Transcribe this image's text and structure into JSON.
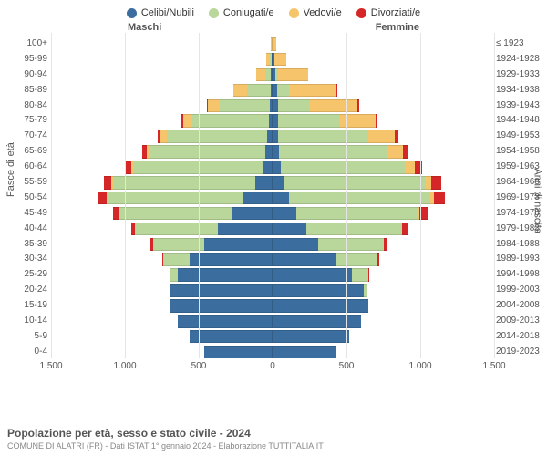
{
  "legend": {
    "items": [
      {
        "label": "Celibi/Nubili",
        "color": "#3b6e9e"
      },
      {
        "label": "Coniugati/e",
        "color": "#b9d79a"
      },
      {
        "label": "Vedovi/e",
        "color": "#f6c46b"
      },
      {
        "label": "Divorziati/e",
        "color": "#d62728"
      }
    ]
  },
  "gender": {
    "male": "Maschi",
    "female": "Femmine"
  },
  "y_title_left": "Fasce di età",
  "y_title_right": "Anni di nascita",
  "axis": {
    "max": 1500,
    "ticks": [
      {
        "v": -1500,
        "label": "1.500"
      },
      {
        "v": -1000,
        "label": "1.000"
      },
      {
        "v": -500,
        "label": "500"
      },
      {
        "v": 0,
        "label": "0"
      },
      {
        "v": 500,
        "label": "500"
      },
      {
        "v": 1000,
        "label": "1.000"
      },
      {
        "v": 1500,
        "label": "1.500"
      }
    ]
  },
  "colors": {
    "celibi": "#3b6e9e",
    "coniugati": "#b9d79a",
    "vedovi": "#f6c46b",
    "divorziati": "#d62728",
    "grid": "#e5e5e5",
    "center": "#bbbbbb",
    "bg": "#ffffff"
  },
  "rows": [
    {
      "age": "100+",
      "birth": "≤ 1923",
      "m": {
        "c": 0,
        "g": 0,
        "v": 10,
        "d": 0
      },
      "f": {
        "c": 0,
        "g": 0,
        "v": 25,
        "d": 0
      }
    },
    {
      "age": "95-99",
      "birth": "1924-1928",
      "m": {
        "c": 5,
        "g": 10,
        "v": 30,
        "d": 0
      },
      "f": {
        "c": 10,
        "g": 5,
        "v": 80,
        "d": 0
      }
    },
    {
      "age": "90-94",
      "birth": "1929-1933",
      "m": {
        "c": 10,
        "g": 40,
        "v": 60,
        "d": 0
      },
      "f": {
        "c": 20,
        "g": 20,
        "v": 200,
        "d": 0
      }
    },
    {
      "age": "85-89",
      "birth": "1934-1938",
      "m": {
        "c": 15,
        "g": 160,
        "v": 90,
        "d": 0
      },
      "f": {
        "c": 30,
        "g": 80,
        "v": 320,
        "d": 5
      }
    },
    {
      "age": "80-84",
      "birth": "1939-1943",
      "m": {
        "c": 20,
        "g": 340,
        "v": 80,
        "d": 5
      },
      "f": {
        "c": 35,
        "g": 220,
        "v": 320,
        "d": 10
      }
    },
    {
      "age": "75-79",
      "birth": "1944-1948",
      "m": {
        "c": 25,
        "g": 520,
        "v": 60,
        "d": 10
      },
      "f": {
        "c": 35,
        "g": 420,
        "v": 240,
        "d": 15
      }
    },
    {
      "age": "70-74",
      "birth": "1949-1953",
      "m": {
        "c": 35,
        "g": 680,
        "v": 45,
        "d": 20
      },
      "f": {
        "c": 40,
        "g": 610,
        "v": 180,
        "d": 25
      }
    },
    {
      "age": "65-69",
      "birth": "1954-1958",
      "m": {
        "c": 50,
        "g": 780,
        "v": 25,
        "d": 30
      },
      "f": {
        "c": 45,
        "g": 730,
        "v": 110,
        "d": 35
      }
    },
    {
      "age": "60-64",
      "birth": "1959-1963",
      "m": {
        "c": 70,
        "g": 870,
        "v": 15,
        "d": 40
      },
      "f": {
        "c": 55,
        "g": 840,
        "v": 70,
        "d": 45
      }
    },
    {
      "age": "55-59",
      "birth": "1964-1968",
      "m": {
        "c": 120,
        "g": 960,
        "v": 10,
        "d": 55
      },
      "f": {
        "c": 80,
        "g": 950,
        "v": 45,
        "d": 65
      }
    },
    {
      "age": "50-54",
      "birth": "1969-1973",
      "m": {
        "c": 200,
        "g": 920,
        "v": 5,
        "d": 55
      },
      "f": {
        "c": 110,
        "g": 960,
        "v": 25,
        "d": 70
      }
    },
    {
      "age": "45-49",
      "birth": "1974-1978",
      "m": {
        "c": 280,
        "g": 760,
        "v": 3,
        "d": 40
      },
      "f": {
        "c": 160,
        "g": 820,
        "v": 15,
        "d": 55
      }
    },
    {
      "age": "40-44",
      "birth": "1979-1983",
      "m": {
        "c": 370,
        "g": 560,
        "v": 2,
        "d": 25
      },
      "f": {
        "c": 230,
        "g": 640,
        "v": 8,
        "d": 40
      }
    },
    {
      "age": "35-39",
      "birth": "1984-1988",
      "m": {
        "c": 460,
        "g": 350,
        "v": 0,
        "d": 15
      },
      "f": {
        "c": 310,
        "g": 440,
        "v": 3,
        "d": 25
      }
    },
    {
      "age": "30-34",
      "birth": "1989-1993",
      "m": {
        "c": 560,
        "g": 180,
        "v": 0,
        "d": 8
      },
      "f": {
        "c": 430,
        "g": 280,
        "v": 0,
        "d": 15
      }
    },
    {
      "age": "25-29",
      "birth": "1994-1998",
      "m": {
        "c": 640,
        "g": 55,
        "v": 0,
        "d": 3
      },
      "f": {
        "c": 540,
        "g": 110,
        "v": 0,
        "d": 5
      }
    },
    {
      "age": "20-24",
      "birth": "1999-2003",
      "m": {
        "c": 690,
        "g": 10,
        "v": 0,
        "d": 0
      },
      "f": {
        "c": 620,
        "g": 25,
        "v": 0,
        "d": 0
      }
    },
    {
      "age": "15-19",
      "birth": "2004-2008",
      "m": {
        "c": 700,
        "g": 0,
        "v": 0,
        "d": 0
      },
      "f": {
        "c": 650,
        "g": 0,
        "v": 0,
        "d": 0
      }
    },
    {
      "age": "10-14",
      "birth": "2009-2013",
      "m": {
        "c": 640,
        "g": 0,
        "v": 0,
        "d": 0
      },
      "f": {
        "c": 600,
        "g": 0,
        "v": 0,
        "d": 0
      }
    },
    {
      "age": "5-9",
      "birth": "2014-2018",
      "m": {
        "c": 560,
        "g": 0,
        "v": 0,
        "d": 0
      },
      "f": {
        "c": 520,
        "g": 0,
        "v": 0,
        "d": 0
      }
    },
    {
      "age": "0-4",
      "birth": "2019-2023",
      "m": {
        "c": 460,
        "g": 0,
        "v": 0,
        "d": 0
      },
      "f": {
        "c": 430,
        "g": 0,
        "v": 0,
        "d": 0
      }
    }
  ],
  "footer": {
    "title": "Popolazione per età, sesso e stato civile - 2024",
    "subtitle": "COMUNE DI ALATRI (FR) - Dati ISTAT 1° gennaio 2024 - Elaborazione TUTTITALIA.IT"
  }
}
